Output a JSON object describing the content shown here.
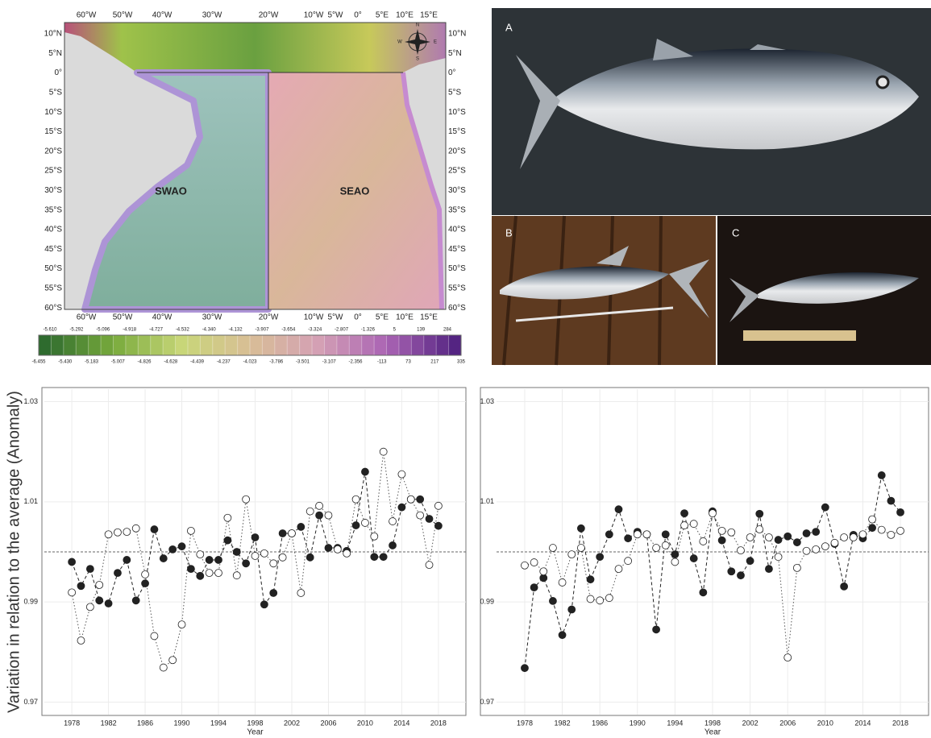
{
  "map": {
    "lon_labels": [
      "60°W",
      "50°W",
      "40°W",
      "30°W",
      "20°W",
      "10°W",
      "5°W",
      "0°",
      "5°E",
      "10°E",
      "15°E"
    ],
    "lat_labels": [
      "10°N",
      "5°N",
      "0°",
      "5°S",
      "10°S",
      "15°S",
      "20°S",
      "25°S",
      "30°S",
      "35°S",
      "40°S",
      "45°S",
      "50°S",
      "55°S",
      "60°S"
    ],
    "regions": [
      "SWAO",
      "SEAO"
    ],
    "compass": [
      "N",
      "E",
      "S",
      "W"
    ],
    "colorbar_top": [
      "-5.610",
      "-5.292",
      "-5.096",
      "-4.918",
      "-4.727",
      "-4.532",
      "-4.340",
      "-4.132",
      "-3.907",
      "-3.654",
      "-3.324",
      "-2.807",
      "-1.326",
      "5",
      "139",
      "284"
    ],
    "colorbar_bottom": [
      "-6.455",
      "-5.430",
      "-5.183",
      "-5.007",
      "-4.826",
      "-4.628",
      "-4.439",
      "-4.237",
      "-4.023",
      "-3.786",
      "-3.501",
      "-3.107",
      "-2.356",
      "-113",
      "73",
      "217",
      "335"
    ]
  },
  "photos": {
    "labels": [
      "A",
      "B",
      "C"
    ]
  },
  "chart_data": [
    {
      "type": "line",
      "ylabel": "Variation in relation to the average (Anomaly)",
      "xlabel": "Year",
      "x": [
        1978,
        1979,
        1980,
        1981,
        1982,
        1983,
        1984,
        1985,
        1986,
        1987,
        1988,
        1989,
        1990,
        1991,
        1992,
        1993,
        1994,
        1995,
        1996,
        1997,
        1998,
        1999,
        2000,
        2001,
        2002,
        2003,
        2004,
        2005,
        2006,
        2007,
        2008,
        2009,
        2010,
        2011,
        2012,
        2013,
        2014,
        2015,
        2016,
        2017,
        2018
      ],
      "series": [
        {
          "color": "#222222",
          "marker_fill": "#222222",
          "linestyle": "dashed",
          "values": [
            0.998,
            0.9932,
            0.9966,
            0.9903,
            0.9897,
            0.9958,
            0.9984,
            0.9903,
            0.9937,
            1.0045,
            0.9987,
            1.0005,
            1.0011,
            0.9966,
            0.9952,
            0.9984,
            0.9984,
            1.0023,
            1.0,
            0.9977,
            1.0029,
            0.9895,
            0.9918,
            1.0037,
            1.0037,
            1.005,
            0.9989,
            1.0073,
            1.0008,
            1.0008,
            1.0002,
            1.0053,
            1.016,
            0.999,
            0.999,
            1.0013,
            1.0089,
            1.0105,
            1.0105,
            1.0066,
            1.0052
          ]
        },
        {
          "color": "#555555",
          "marker_fill": "#ffffff",
          "linestyle": "dotted",
          "values": [
            0.9919,
            0.9823,
            0.989,
            0.9934,
            1.0035,
            1.0039,
            1.004,
            1.0047,
            0.9955,
            0.9832,
            0.9769,
            0.9784,
            0.9855,
            1.0042,
            0.9995,
            0.9958,
            0.9958,
            1.0068,
            0.9953,
            1.0105,
            0.9992,
            0.9997,
            0.9977,
            0.9989,
            1.0037,
            0.9918,
            1.0081,
            1.0092,
            1.0073,
            1.0005,
            0.9997,
            1.0105,
            1.0058,
            1.0031,
            1.02,
            1.0061,
            1.0155,
            1.0105,
            1.0073,
            0.9974,
            1.0092
          ]
        }
      ],
      "xlim": [
        1975,
        2021
      ],
      "ylim": [
        0.9675,
        1.0325
      ],
      "xticks": [
        1978,
        1982,
        1986,
        1990,
        1994,
        1998,
        2002,
        2006,
        2010,
        2014,
        2018
      ],
      "yticks": [
        0.97,
        0.99,
        1.01,
        1.03
      ],
      "grid": true,
      "hline": 1
    },
    {
      "type": "line",
      "xlabel": "Year",
      "x": [
        1978,
        1979,
        1980,
        1981,
        1982,
        1983,
        1984,
        1985,
        1986,
        1987,
        1988,
        1989,
        1990,
        1991,
        1992,
        1993,
        1994,
        1995,
        1996,
        1997,
        1998,
        1999,
        2000,
        2001,
        2002,
        2003,
        2004,
        2005,
        2006,
        2007,
        2008,
        2009,
        2010,
        2011,
        2012,
        2013,
        2014,
        2015,
        2016,
        2017,
        2018
      ],
      "series": [
        {
          "color": "#222222",
          "marker_fill": "#222222",
          "linestyle": "dashed",
          "values": [
            0.9768,
            0.9929,
            0.9948,
            0.9902,
            0.9834,
            0.9885,
            1.0047,
            0.9945,
            0.999,
            1.0035,
            1.0085,
            1.0027,
            1.004,
            1.0035,
            0.9845,
            1.0035,
            0.9995,
            1.0077,
            0.9987,
            0.9919,
            1.0081,
            1.0023,
            0.9961,
            0.9953,
            0.9982,
            1.0076,
            0.9966,
            1.0024,
            1.0031,
            1.0019,
            1.0037,
            1.004,
            1.0089,
            1.0016,
            0.9931,
            1.0034,
            1.0027,
            1.0048,
            1.0153,
            1.0102,
            1.0079
          ]
        },
        {
          "color": "#555555",
          "marker_fill": "#ffffff",
          "linestyle": "dotted",
          "values": [
            0.9973,
            0.9979,
            0.9961,
            1.0008,
            0.9939,
            0.9995,
            1.0008,
            0.9906,
            0.9903,
            0.9908,
            0.9966,
            0.9982,
            1.0035,
            1.0035,
            1.0008,
            1.0013,
            0.998,
            1.0053,
            1.0056,
            1.0021,
            1.0077,
            1.0042,
            1.0039,
            1.0003,
            1.0029,
            1.0045,
            1.0029,
            0.999,
            0.9789,
            0.9968,
            1.0002,
            1.0005,
            1.0011,
            1.0018,
            1.0029,
            1.0029,
            1.0035,
            1.0065,
            1.0044,
            1.0034,
            1.0042
          ]
        }
      ],
      "xlim": [
        1975,
        2021
      ],
      "ylim": [
        0.9675,
        1.0325
      ],
      "xticks": [
        1978,
        1982,
        1986,
        1990,
        1994,
        1998,
        2002,
        2006,
        2010,
        2014,
        2018
      ],
      "yticks": [
        0.97,
        0.99,
        1.01,
        1.03
      ],
      "grid": true,
      "hline": 1
    }
  ]
}
